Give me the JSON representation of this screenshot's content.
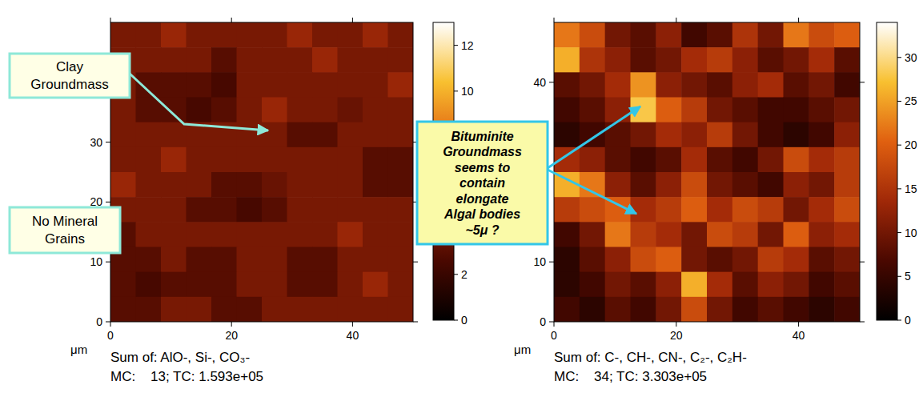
{
  "chart_data": [
    {
      "type": "heatmap",
      "x_label": "μm",
      "caption": [
        "Sum of: AlO-, Si-, CO₃-",
        "MC:    13; TC: 1.593e+05"
      ],
      "xlim": [
        0,
        50
      ],
      "ylim": [
        0,
        50
      ],
      "xticks": [
        0,
        20,
        40
      ],
      "yticks": [
        0,
        10,
        20,
        30
      ],
      "cells": [
        [
          4,
          4,
          5,
          4,
          4,
          4,
          4,
          5,
          4,
          4,
          5,
          4
        ],
        [
          4,
          4,
          4,
          4,
          3,
          4,
          4,
          4,
          5,
          4,
          4,
          4
        ],
        [
          4,
          3,
          3,
          3,
          2.5,
          4,
          4,
          4,
          4,
          4,
          4,
          5
        ],
        [
          4,
          3,
          3,
          2.5,
          3,
          4,
          5,
          4,
          4,
          3.5,
          4,
          4
        ],
        [
          4,
          4,
          4,
          4,
          4,
          4,
          4,
          3,
          3,
          4,
          4,
          4
        ],
        [
          4,
          4,
          5,
          4,
          4,
          4,
          4,
          4,
          4,
          4,
          3,
          3
        ],
        [
          5,
          4,
          4,
          4,
          3,
          3,
          3.5,
          4,
          4,
          4,
          3,
          3
        ],
        [
          4,
          4,
          4,
          3,
          3,
          2.5,
          3,
          4,
          4,
          4,
          4,
          4
        ],
        [
          3,
          4,
          4,
          4,
          4,
          4,
          4,
          4,
          4,
          5,
          4,
          4
        ],
        [
          3,
          3,
          4,
          3,
          3,
          4,
          4,
          3,
          3,
          4,
          4,
          4
        ],
        [
          3,
          2.5,
          3,
          3,
          3,
          4,
          4,
          3,
          3,
          4,
          5,
          4
        ],
        [
          3,
          3,
          4,
          4,
          3,
          3,
          4,
          4,
          4,
          4,
          4,
          4
        ]
      ],
      "colorbar_range": [
        0,
        13
      ],
      "colorbar_ticks": [
        0,
        2,
        10,
        12
      ]
    },
    {
      "type": "heatmap",
      "x_label": "μm",
      "caption": [
        "Sum of: C-, CH-, CN-, C₂-, C₂H-",
        "MC:    34; TC: 3.303e+05"
      ],
      "xlim": [
        0,
        50
      ],
      "ylim": [
        0,
        50
      ],
      "xticks": [
        0,
        20,
        40
      ],
      "yticks": [
        0,
        10,
        40
      ],
      "cells": [
        [
          22,
          18,
          10,
          8,
          12,
          6,
          8,
          15,
          10,
          22,
          18,
          20
        ],
        [
          26,
          15,
          12,
          8,
          10,
          14,
          16,
          12,
          8,
          10,
          14,
          8
        ],
        [
          8,
          10,
          14,
          24,
          12,
          10,
          8,
          12,
          14,
          8,
          10,
          6
        ],
        [
          6,
          8,
          12,
          28,
          20,
          16,
          10,
          8,
          6,
          6,
          8,
          10
        ],
        [
          4,
          6,
          8,
          10,
          14,
          12,
          16,
          10,
          6,
          4,
          6,
          12
        ],
        [
          14,
          12,
          8,
          6,
          8,
          14,
          8,
          6,
          10,
          18,
          14,
          16
        ],
        [
          26,
          22,
          12,
          8,
          12,
          18,
          10,
          8,
          6,
          12,
          10,
          16
        ],
        [
          16,
          18,
          20,
          14,
          16,
          20,
          14,
          18,
          16,
          10,
          14,
          18
        ],
        [
          6,
          10,
          22,
          16,
          14,
          10,
          18,
          16,
          10,
          20,
          12,
          14
        ],
        [
          4,
          8,
          12,
          18,
          20,
          10,
          8,
          10,
          16,
          14,
          8,
          10
        ],
        [
          4,
          6,
          10,
          8,
          12,
          26,
          14,
          8,
          12,
          10,
          6,
          8
        ],
        [
          6,
          4,
          8,
          6,
          10,
          18,
          10,
          6,
          8,
          6,
          4,
          6
        ]
      ],
      "colorbar_range": [
        0,
        34
      ],
      "colorbar_ticks": [
        0,
        5,
        10,
        15,
        20,
        25,
        30
      ]
    }
  ],
  "annotations": [
    {
      "lines": [
        "Clay",
        "Groundmass"
      ]
    },
    {
      "lines": [
        "No Mineral",
        "Grains"
      ]
    },
    {
      "lines": [
        "Bituminite",
        "Groundmass",
        "seems to",
        "contain",
        "elongate",
        "Algal bodies",
        "~5μ ?"
      ]
    }
  ]
}
